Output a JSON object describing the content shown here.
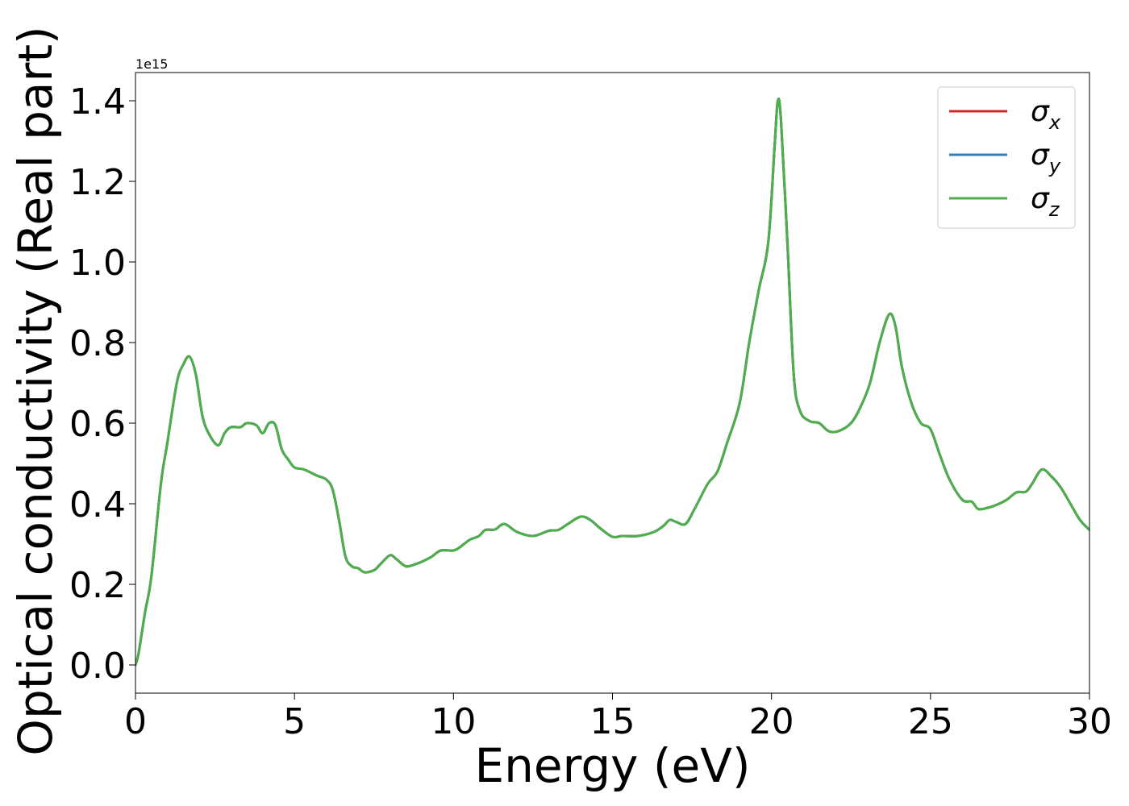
{
  "chart_data": {
    "type": "line",
    "xlabel": "Energy (eV)",
    "ylabel": "Optical conductivity (Real part)",
    "y_offset_label": "1e15",
    "xlim": [
      0,
      30
    ],
    "ylim": [
      -0.07,
      1.47
    ],
    "x_ticks": [
      0,
      5,
      10,
      15,
      20,
      25,
      30
    ],
    "x_tick_labels": [
      "0",
      "5",
      "10",
      "15",
      "20",
      "25",
      "30"
    ],
    "y_ticks": [
      0.0,
      0.2,
      0.4,
      0.6,
      0.8,
      1.0,
      1.2,
      1.4
    ],
    "y_tick_labels": [
      "0.0",
      "0.2",
      "0.4",
      "0.6",
      "0.8",
      "1.0",
      "1.2",
      "1.4"
    ],
    "grid": false,
    "legend_position": "top-right",
    "x": [
      0,
      0.1,
      0.3,
      0.5,
      0.8,
      1.0,
      1.3,
      1.5,
      1.7,
      1.9,
      2.1,
      2.3,
      2.6,
      2.8,
      3.0,
      3.3,
      3.5,
      3.8,
      4.0,
      4.2,
      4.4,
      4.6,
      4.8,
      5.0,
      5.3,
      5.7,
      6.0,
      6.2,
      6.4,
      6.6,
      6.8,
      7.0,
      7.2,
      7.5,
      7.7,
      8.0,
      8.2,
      8.5,
      8.8,
      9.0,
      9.3,
      9.6,
      10.0,
      10.2,
      10.5,
      10.8,
      11.0,
      11.3,
      11.6,
      12.0,
      12.5,
      13.0,
      13.3,
      13.6,
      14.0,
      14.3,
      14.6,
      15.0,
      15.3,
      15.8,
      16.3,
      16.6,
      16.8,
      17.0,
      17.3,
      17.6,
      18.0,
      18.3,
      18.6,
      19.0,
      19.3,
      19.6,
      19.9,
      20.1,
      20.2,
      20.3,
      20.5,
      20.7,
      20.9,
      21.2,
      21.5,
      21.8,
      22.1,
      22.5,
      22.8,
      23.1,
      23.4,
      23.7,
      23.9,
      24.1,
      24.4,
      24.7,
      25.0,
      25.3,
      25.6,
      26.0,
      26.3,
      26.5,
      26.8,
      27.1,
      27.4,
      27.7,
      28.0,
      28.2,
      28.5,
      28.8,
      29.1,
      29.4,
      29.7,
      30.0
    ],
    "series": [
      {
        "name": "σx",
        "color": "#d62728",
        "values": [
          0.0,
          0.03,
          0.13,
          0.22,
          0.45,
          0.55,
          0.7,
          0.745,
          0.765,
          0.72,
          0.62,
          0.575,
          0.545,
          0.575,
          0.59,
          0.59,
          0.6,
          0.595,
          0.575,
          0.6,
          0.595,
          0.535,
          0.51,
          0.49,
          0.485,
          0.47,
          0.46,
          0.435,
          0.36,
          0.27,
          0.245,
          0.24,
          0.23,
          0.235,
          0.25,
          0.272,
          0.263,
          0.245,
          0.25,
          0.256,
          0.268,
          0.284,
          0.284,
          0.292,
          0.31,
          0.32,
          0.335,
          0.336,
          0.35,
          0.33,
          0.32,
          0.333,
          0.335,
          0.35,
          0.368,
          0.36,
          0.34,
          0.318,
          0.32,
          0.32,
          0.33,
          0.345,
          0.36,
          0.355,
          0.35,
          0.39,
          0.45,
          0.48,
          0.55,
          0.65,
          0.8,
          0.93,
          1.05,
          1.29,
          1.4,
          1.35,
          1.05,
          0.72,
          0.63,
          0.605,
          0.6,
          0.58,
          0.58,
          0.6,
          0.64,
          0.7,
          0.8,
          0.87,
          0.84,
          0.74,
          0.65,
          0.6,
          0.585,
          0.52,
          0.46,
          0.41,
          0.405,
          0.387,
          0.39,
          0.398,
          0.41,
          0.428,
          0.43,
          0.45,
          0.485,
          0.468,
          0.44,
          0.4,
          0.36,
          0.335
        ]
      },
      {
        "name": "σy",
        "color": "#377eb8",
        "values": [
          0.0,
          0.03,
          0.13,
          0.22,
          0.45,
          0.55,
          0.7,
          0.745,
          0.765,
          0.72,
          0.62,
          0.575,
          0.545,
          0.575,
          0.59,
          0.59,
          0.6,
          0.595,
          0.575,
          0.6,
          0.595,
          0.535,
          0.51,
          0.49,
          0.485,
          0.47,
          0.46,
          0.435,
          0.36,
          0.27,
          0.245,
          0.24,
          0.23,
          0.235,
          0.25,
          0.272,
          0.263,
          0.245,
          0.25,
          0.256,
          0.268,
          0.284,
          0.284,
          0.292,
          0.31,
          0.32,
          0.335,
          0.336,
          0.35,
          0.33,
          0.32,
          0.333,
          0.335,
          0.35,
          0.368,
          0.36,
          0.34,
          0.318,
          0.32,
          0.32,
          0.33,
          0.345,
          0.36,
          0.355,
          0.35,
          0.39,
          0.45,
          0.48,
          0.55,
          0.65,
          0.8,
          0.93,
          1.05,
          1.29,
          1.4,
          1.35,
          1.05,
          0.72,
          0.63,
          0.605,
          0.6,
          0.58,
          0.58,
          0.6,
          0.64,
          0.7,
          0.8,
          0.87,
          0.84,
          0.74,
          0.65,
          0.6,
          0.585,
          0.52,
          0.46,
          0.41,
          0.405,
          0.387,
          0.39,
          0.398,
          0.41,
          0.428,
          0.43,
          0.45,
          0.485,
          0.468,
          0.44,
          0.4,
          0.36,
          0.335
        ]
      },
      {
        "name": "σz",
        "color": "#4daf4a",
        "values": [
          0.0,
          0.03,
          0.13,
          0.22,
          0.45,
          0.55,
          0.7,
          0.745,
          0.765,
          0.72,
          0.62,
          0.575,
          0.545,
          0.575,
          0.59,
          0.59,
          0.6,
          0.595,
          0.575,
          0.6,
          0.595,
          0.535,
          0.51,
          0.49,
          0.485,
          0.47,
          0.46,
          0.435,
          0.36,
          0.27,
          0.245,
          0.24,
          0.23,
          0.235,
          0.25,
          0.272,
          0.263,
          0.245,
          0.25,
          0.256,
          0.268,
          0.284,
          0.284,
          0.292,
          0.31,
          0.32,
          0.335,
          0.336,
          0.35,
          0.33,
          0.32,
          0.333,
          0.335,
          0.35,
          0.368,
          0.36,
          0.34,
          0.318,
          0.32,
          0.32,
          0.33,
          0.345,
          0.36,
          0.355,
          0.35,
          0.39,
          0.45,
          0.48,
          0.55,
          0.65,
          0.8,
          0.93,
          1.05,
          1.29,
          1.4,
          1.35,
          1.05,
          0.72,
          0.63,
          0.605,
          0.6,
          0.58,
          0.58,
          0.6,
          0.64,
          0.7,
          0.8,
          0.87,
          0.84,
          0.74,
          0.65,
          0.6,
          0.585,
          0.52,
          0.46,
          0.41,
          0.405,
          0.387,
          0.39,
          0.398,
          0.41,
          0.428,
          0.43,
          0.45,
          0.485,
          0.468,
          0.44,
          0.4,
          0.36,
          0.335
        ]
      }
    ],
    "legend": [
      {
        "symbol": "σ",
        "sub": "x",
        "color": "#d62728"
      },
      {
        "symbol": "σ",
        "sub": "y",
        "color": "#377eb8"
      },
      {
        "symbol": "σ",
        "sub": "z",
        "color": "#4daf4a"
      }
    ]
  }
}
